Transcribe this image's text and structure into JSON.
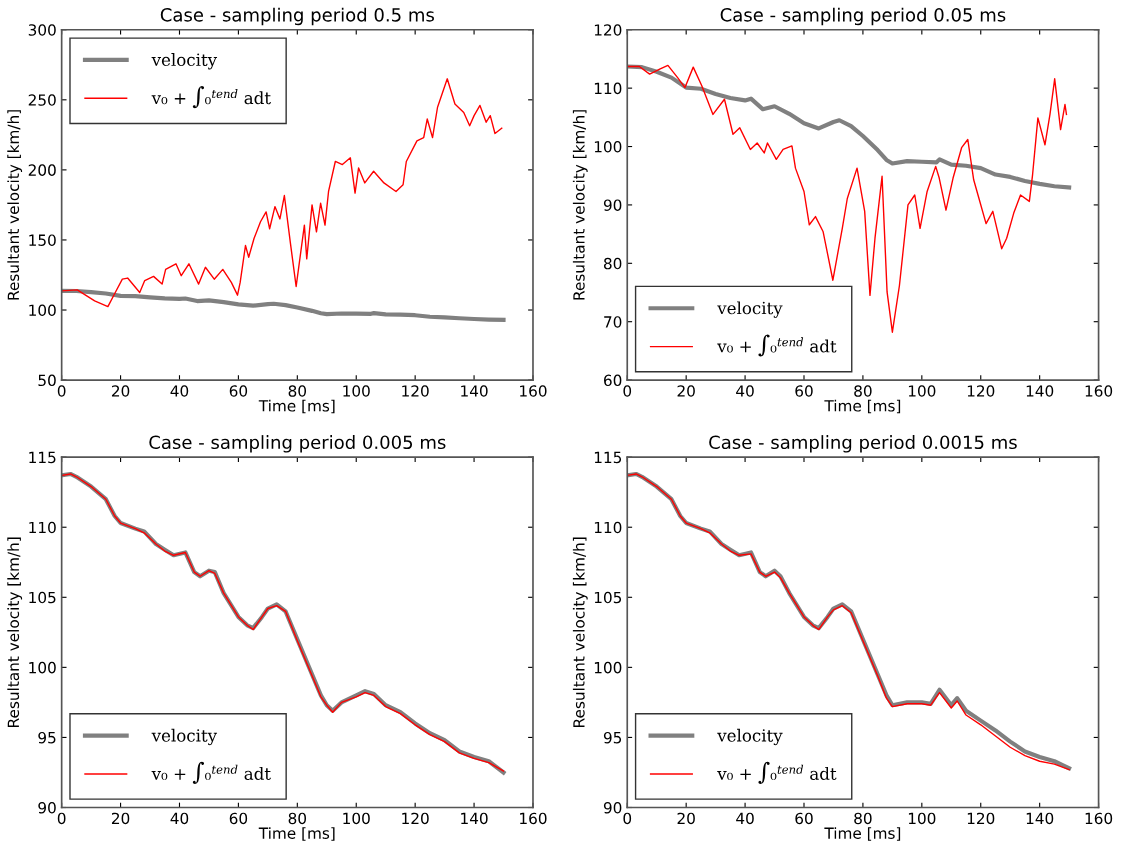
{
  "chart_data": [
    {
      "type": "line",
      "title": "Case - sampling period 0.5 ms",
      "xlabel": "Time [ms]",
      "ylabel": "Resultant velocity [km/h]",
      "xlim": [
        0,
        160
      ],
      "xticks": [
        0,
        20,
        40,
        60,
        80,
        100,
        120,
        140,
        160
      ],
      "ylim": [
        50,
        300
      ],
      "yticks": [
        50,
        100,
        150,
        200,
        250,
        300
      ],
      "grid": false,
      "legend": "top left",
      "series": [
        {
          "name": "velocity",
          "color": "#808080",
          "x": [
            0,
            5,
            10,
            15,
            20,
            25,
            30,
            35,
            40,
            42,
            46,
            50,
            55,
            60,
            65,
            70,
            72,
            76,
            80,
            85,
            88,
            90,
            95,
            100,
            105,
            106,
            110,
            115,
            120,
            125,
            130,
            135,
            140,
            145,
            150
          ],
          "values": [
            113.7,
            113.6,
            112.8,
            111.8,
            110.1,
            109.9,
            109,
            108.3,
            107.9,
            108.2,
            106.4,
            106.9,
            105.6,
            104,
            103.1,
            104.2,
            104.5,
            103.5,
            101.8,
            99.4,
            97.7,
            97.1,
            97.5,
            97.4,
            97.3,
            97.8,
            96.9,
            96.7,
            96.3,
            95.2,
            94.8,
            94.1,
            93.6,
            93.2,
            93
          ]
        },
        {
          "name": "v₀ + ∫₀$^{tend}$ adt",
          "color": "#ff0000",
          "x": [
            0,
            5.3,
            11.2,
            15.7,
            18.2,
            20.6,
            22.4,
            26.5,
            28.2,
            31.2,
            34.1,
            35.3,
            38.8,
            40.6,
            43.2,
            46.5,
            48.8,
            51.8,
            54.7,
            57.6,
            59.7,
            60.6,
            62.4,
            63.5,
            65.3,
            67.5,
            69.4,
            70.6,
            72.4,
            74.1,
            75.6,
            77.6,
            79.6,
            82.4,
            83.2,
            85,
            86.5,
            87.9,
            89.4,
            90.6,
            92.9,
            95.3,
            98,
            99.6,
            100.8,
            102.9,
            105.9,
            109.4,
            113.5,
            115.9,
            117,
            120.6,
            122.9,
            124.1,
            125.9,
            127.6,
            130.9,
            133.5,
            136.5,
            138.5,
            140,
            142,
            144.1,
            145.5,
            147.1,
            149.4
          ],
          "values": [
            113.7,
            114.4,
            106.5,
            102.4,
            112.5,
            122,
            122.8,
            112.5,
            121,
            124,
            118.5,
            129,
            133,
            124.5,
            133,
            118.5,
            130.5,
            122,
            129,
            119.7,
            110.6,
            119.7,
            146,
            137.7,
            151,
            163,
            170,
            158,
            173.8,
            165,
            181.7,
            148.6,
            116.8,
            160.6,
            136.5,
            175,
            155.8,
            176.2,
            160.6,
            184.6,
            206,
            203.8,
            208.6,
            183.4,
            201.4,
            190.7,
            199,
            190.7,
            184.6,
            189.4,
            206,
            220.7,
            223,
            236.3,
            223,
            244.7,
            265,
            247,
            241,
            231.5,
            238.7,
            246,
            234,
            238.7,
            226,
            229.8
          ]
        }
      ]
    },
    {
      "type": "line",
      "title": "Case - sampling period 0.05 ms",
      "xlabel": "Time [ms]",
      "ylabel": "Resultant velocity [km/h]",
      "xlim": [
        0,
        160
      ],
      "xticks": [
        0,
        20,
        40,
        60,
        80,
        100,
        120,
        140,
        160
      ],
      "ylim": [
        60,
        120
      ],
      "yticks": [
        60,
        70,
        80,
        90,
        100,
        110,
        120
      ],
      "grid": false,
      "legend": "bottom left",
      "series": [
        {
          "name": "velocity",
          "color": "#808080",
          "x": [
            0,
            5,
            10,
            15,
            20,
            25,
            30,
            35,
            40,
            42,
            46,
            50,
            55,
            60,
            65,
            70,
            72,
            76,
            80,
            85,
            88,
            90,
            95,
            100,
            105,
            106,
            110,
            115,
            120,
            125,
            130,
            135,
            140,
            145,
            150
          ],
          "values": [
            113.7,
            113.6,
            112.8,
            111.8,
            110.1,
            109.9,
            109,
            108.3,
            107.9,
            108.2,
            106.4,
            106.9,
            105.6,
            104,
            103.1,
            104.2,
            104.5,
            103.5,
            101.8,
            99.4,
            97.7,
            97.1,
            97.5,
            97.4,
            97.3,
            97.8,
            96.9,
            96.7,
            96.3,
            95.2,
            94.8,
            94.1,
            93.6,
            93.2,
            93
          ]
        },
        {
          "name": "v₀ + ∫₀$^{tend}$ adt",
          "color": "#ff0000",
          "x": [
            0,
            4.1,
            7.6,
            11.2,
            13.8,
            17.1,
            19.6,
            22.4,
            25.3,
            29.1,
            33,
            35.9,
            38.2,
            41.8,
            44.1,
            46.5,
            47.6,
            50.6,
            52.9,
            55.9,
            57.1,
            60,
            61.8,
            63.9,
            66.5,
            69.8,
            73,
            74.7,
            78,
            80.6,
            82.4,
            84.1,
            86.5,
            88.2,
            90,
            92.4,
            95.3,
            97.6,
            99.4,
            101.8,
            104.7,
            105.9,
            108.2,
            110.6,
            113.5,
            115.6,
            117.6,
            119.4,
            121.8,
            124.1,
            127.1,
            128.8,
            131.2,
            133.5,
            136.5,
            137.6,
            139.4,
            141.8,
            143.5,
            145.1,
            147.1,
            148.6,
            149.1
          ],
          "values": [
            113.7,
            113.7,
            112.4,
            113.3,
            113.9,
            111.8,
            110.1,
            113.6,
            110.4,
            105.5,
            108.1,
            102.1,
            103.2,
            99.5,
            100.6,
            98.9,
            100.6,
            97.8,
            99.5,
            100.1,
            96.3,
            92.3,
            86.6,
            88,
            85.4,
            77.1,
            86,
            91.1,
            96.3,
            88.9,
            74.5,
            84.3,
            94.9,
            75.1,
            68.2,
            76.2,
            90,
            91.7,
            86,
            92.3,
            96.6,
            94.6,
            89.1,
            94.6,
            99.8,
            101.2,
            94.3,
            91.1,
            86.8,
            88.9,
            82.5,
            84.3,
            88.6,
            91.7,
            90.6,
            95.2,
            104.9,
            100.3,
            105.5,
            111.6,
            102.9,
            107.2,
            105.5
          ]
        }
      ]
    },
    {
      "type": "line",
      "title": "Case - sampling period 0.005 ms",
      "xlabel": "Time [ms]",
      "ylabel": "Resultant velocity [km/h]",
      "xlim": [
        0,
        160
      ],
      "xticks": [
        0,
        20,
        40,
        60,
        80,
        100,
        120,
        140,
        160
      ],
      "ylim": [
        90,
        115
      ],
      "yticks": [
        90,
        95,
        100,
        105,
        110,
        115
      ],
      "grid": false,
      "legend": "bottom left",
      "series": [
        {
          "name": "velocity",
          "color": "#808080",
          "x": [
            0,
            3,
            5,
            10,
            15,
            18,
            20,
            25,
            28,
            32,
            35,
            38,
            42,
            45,
            47,
            50,
            52,
            55,
            60,
            63,
            65,
            68,
            70,
            73,
            76,
            80,
            85,
            88,
            90,
            92,
            95,
            100,
            103,
            106,
            110,
            115,
            120,
            125,
            130,
            135,
            140,
            145,
            150
          ],
          "values": [
            113.7,
            113.8,
            113.6,
            112.9,
            112,
            110.8,
            110.3,
            109.9,
            109.7,
            108.8,
            108.4,
            108,
            108.2,
            106.8,
            106.5,
            106.9,
            106.8,
            105.3,
            103.6,
            103,
            102.8,
            103.6,
            104.2,
            104.5,
            104,
            102,
            99.5,
            98,
            97.3,
            96.9,
            97.5,
            98,
            98.3,
            98.1,
            97.3,
            96.8,
            96,
            95.3,
            94.8,
            94,
            93.6,
            93.3,
            92.5
          ]
        },
        {
          "name": "v₀ + ∫₀$^{tend}$ adt",
          "color": "#ff0000",
          "x": [
            0,
            3,
            5,
            10,
            15,
            18,
            20,
            25,
            28,
            32,
            35,
            38,
            42,
            45,
            47,
            50,
            52,
            55,
            60,
            63,
            65,
            68,
            70,
            73,
            76,
            80,
            85,
            88,
            90,
            92,
            95,
            100,
            103,
            106,
            110,
            115,
            120,
            125,
            130,
            135,
            140,
            145,
            150
          ],
          "values": [
            113.7,
            113.8,
            113.6,
            112.9,
            112,
            110.8,
            110.3,
            109.9,
            109.6,
            108.8,
            108.3,
            108,
            108.2,
            106.8,
            106.5,
            106.9,
            106.7,
            105.3,
            103.6,
            103,
            102.7,
            103.6,
            104.2,
            104.4,
            104,
            101.9,
            99.4,
            97.9,
            97.3,
            96.8,
            97.5,
            97.9,
            98.2,
            98,
            97.2,
            96.7,
            95.9,
            95.2,
            94.7,
            93.9,
            93.5,
            93.2,
            92.6
          ]
        }
      ]
    },
    {
      "type": "line",
      "title": "Case - sampling period 0.0015 ms",
      "xlabel": "Time [ms]",
      "ylabel": "Resultant velocity [km/h]",
      "xlim": [
        0,
        160
      ],
      "xticks": [
        0,
        20,
        40,
        60,
        80,
        100,
        120,
        140,
        160
      ],
      "ylim": [
        90,
        115
      ],
      "yticks": [
        90,
        95,
        100,
        105,
        110,
        115
      ],
      "grid": false,
      "legend": "bottom left",
      "series": [
        {
          "name": "velocity",
          "color": "#808080",
          "x": [
            0,
            3,
            5,
            10,
            15,
            18,
            20,
            25,
            28,
            32,
            35,
            38,
            42,
            45,
            47,
            50,
            52,
            55,
            60,
            63,
            65,
            68,
            70,
            73,
            76,
            80,
            85,
            88,
            90,
            95,
            100,
            103,
            106,
            110,
            112,
            115,
            120,
            125,
            130,
            135,
            140,
            145,
            150
          ],
          "values": [
            113.7,
            113.8,
            113.6,
            112.9,
            112,
            110.8,
            110.3,
            109.9,
            109.7,
            108.8,
            108.4,
            108,
            108.2,
            106.8,
            106.5,
            106.9,
            106.5,
            105.3,
            103.6,
            103,
            102.8,
            103.6,
            104.2,
            104.5,
            104,
            102,
            99.5,
            98,
            97.3,
            97.5,
            97.5,
            97.4,
            98.4,
            97.3,
            97.8,
            96.9,
            96.2,
            95.5,
            94.7,
            94,
            93.6,
            93.3,
            92.8
          ]
        },
        {
          "name": "v₀ + ∫₀$^{tend}$ adt",
          "color": "#ff0000",
          "x": [
            0,
            3,
            5,
            10,
            15,
            18,
            20,
            25,
            28,
            32,
            35,
            38,
            42,
            45,
            47,
            50,
            52,
            55,
            60,
            63,
            65,
            68,
            70,
            73,
            76,
            80,
            85,
            88,
            90,
            95,
            100,
            103,
            106,
            110,
            112,
            115,
            120,
            125,
            130,
            135,
            140,
            145,
            150
          ],
          "values": [
            113.7,
            113.8,
            113.6,
            112.9,
            112,
            110.8,
            110.3,
            109.9,
            109.6,
            108.8,
            108.3,
            108,
            108.1,
            106.8,
            106.5,
            106.8,
            106.4,
            105.3,
            103.6,
            103,
            102.7,
            103.6,
            104.1,
            104.4,
            103.9,
            101.9,
            99.4,
            97.8,
            97.2,
            97.4,
            97.4,
            97.3,
            98.2,
            97.1,
            97.6,
            96.6,
            95.9,
            95.1,
            94.3,
            93.7,
            93.3,
            93.1,
            92.7
          ]
        }
      ]
    }
  ]
}
